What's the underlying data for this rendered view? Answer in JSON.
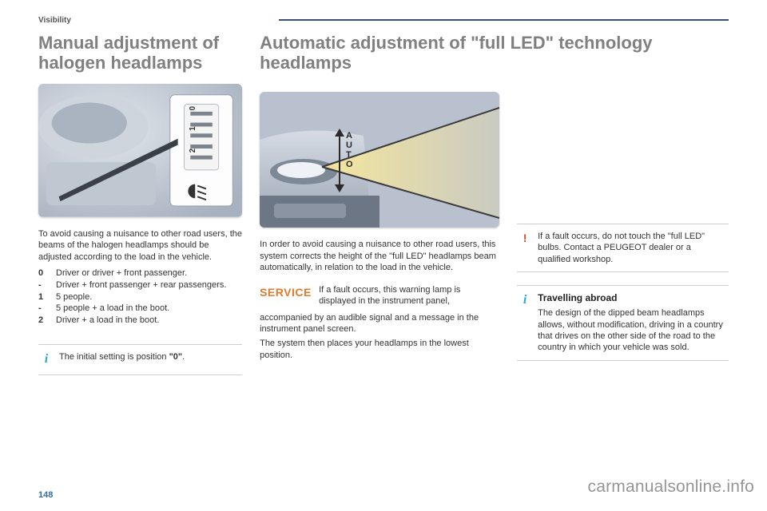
{
  "section_label": "Visibility",
  "page_number": "148",
  "watermark": "carmanualsonline.info",
  "left": {
    "heading": "Manual adjustment of halogen headlamps",
    "intro": "To avoid causing a nuisance to other road users, the beams of the halogen headlamps should be adjusted according to the load in the vehicle.",
    "rows": [
      {
        "k": "0",
        "v": "Driver or driver + front passenger."
      },
      {
        "k": "-",
        "v": "Driver + front passenger + rear passengers."
      },
      {
        "k": "1",
        "v": "5 people."
      },
      {
        "k": "-",
        "v": "5 people + a load in the boot."
      },
      {
        "k": "2",
        "v": "Driver + a load in the boot."
      }
    ],
    "note_html": "The initial setting is position <b>\"0\"</b>."
  },
  "mid": {
    "heading": "Automatic adjustment of \"full LED\" technology headlamps",
    "intro": "In order to avoid causing a nuisance to other road users, this system corrects the height of the \"full LED\" headlamps beam automatically, in relation to the load in the vehicle.",
    "service_label": "SERVICE",
    "service_text1": "If a fault occurs, this warning lamp is displayed in the instrument panel,",
    "service_text2": "accompanied by an audible signal and a message in the instrument panel screen.",
    "service_text3": "The system then places your headlamps in the lowest position."
  },
  "right": {
    "warn_text": "If a fault occurs, do not touch the \"full LED\" bulbs. Contact a PEUGEOT dealer or a qualified workshop.",
    "info_title": "Travelling abroad",
    "info_text": "The design of the dipped beam headlamps allows, without modification, driving in a country that drives on the other side of the road to the country in which your vehicle was sold."
  },
  "colors": {
    "heading_grey": "#808080",
    "rule": "#3a4f6b",
    "info_marker": "#2aa7d6",
    "warn_marker": "#d64a2a",
    "service_orange": "#e07b2e",
    "page_number": "#2f6fa3"
  }
}
